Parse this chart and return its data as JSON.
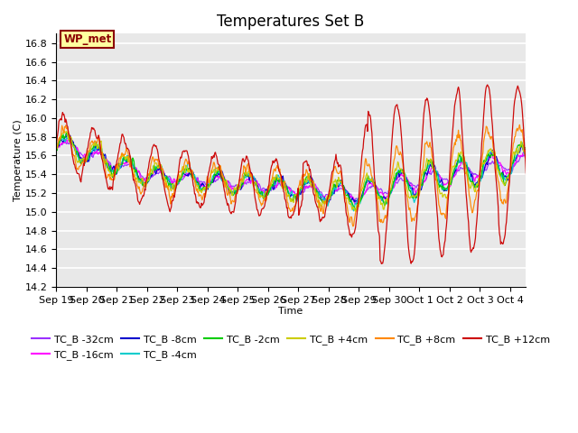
{
  "title": "Temperatures Set B",
  "xlabel": "Time",
  "ylabel": "Temperature (C)",
  "ylim": [
    14.2,
    16.9
  ],
  "annotation": "WP_met",
  "annotation_color": "#8B0000",
  "annotation_bg": "#FFFFA0",
  "background_color": "#E8E8E8",
  "grid_color": "white",
  "series": [
    {
      "label": "TC_B -32cm",
      "color": "#9B30FF"
    },
    {
      "label": "TC_B -16cm",
      "color": "#FF00FF"
    },
    {
      "label": "TC_B -8cm",
      "color": "#0000CC"
    },
    {
      "label": "TC_B -4cm",
      "color": "#00CCCC"
    },
    {
      "label": "TC_B -2cm",
      "color": "#00CC00"
    },
    {
      "label": "TC_B +4cm",
      "color": "#CCCC00"
    },
    {
      "label": "TC_B +8cm",
      "color": "#FF8800"
    },
    {
      "label": "TC_B +12cm",
      "color": "#CC0000"
    }
  ],
  "x_tick_labels": [
    "Sep 19",
    "Sep 20",
    "Sep 21",
    "Sep 22",
    "Sep 23",
    "Sep 24",
    "Sep 25",
    "Sep 26",
    "Sep 27",
    "Sep 28",
    "Sep 29",
    "Sep 30",
    "Oct 1",
    "Oct 2",
    "Oct 3",
    "Oct 4"
  ],
  "tick_fontsize": 8,
  "legend_fontsize": 8,
  "title_fontsize": 12
}
